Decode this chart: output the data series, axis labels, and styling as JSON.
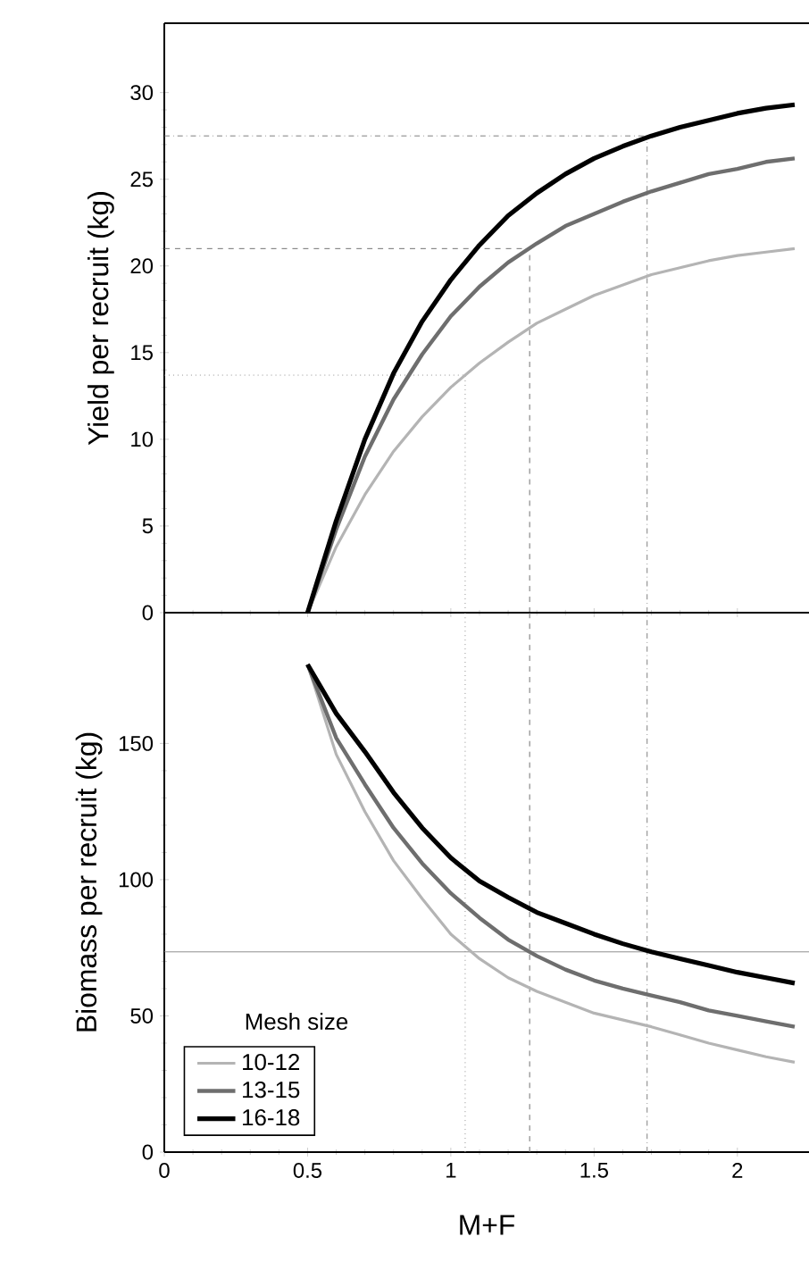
{
  "chart_data": [
    {
      "type": "line",
      "ylabel": "Yield per recruit (kg)",
      "x": [
        0.5,
        0.6,
        0.7,
        0.8,
        0.9,
        1.0,
        1.1,
        1.2,
        1.3,
        1.4,
        1.5,
        1.6,
        1.7,
        1.8,
        1.9,
        2.0,
        2.1,
        2.2
      ],
      "xlim": [
        0,
        2.25
      ],
      "ylim": [
        0,
        34
      ],
      "xticks": [
        0,
        0.5,
        1,
        1.5,
        2
      ],
      "yticks": [
        0,
        5,
        10,
        15,
        20,
        25,
        30
      ],
      "tick_labels": "y",
      "marker": "none",
      "series": [
        {
          "color": "#b4b4b4",
          "values": [
            0,
            3.8,
            6.8,
            9.3,
            11.3,
            13.0,
            14.4,
            15.6,
            16.7,
            17.5,
            18.3,
            18.9,
            19.5,
            19.9,
            20.3,
            20.6,
            20.8,
            21.0
          ]
        },
        {
          "color": "#6e6e6e",
          "values": [
            0,
            4.8,
            9.0,
            12.3,
            14.9,
            17.1,
            18.8,
            20.2,
            21.3,
            22.3,
            23.0,
            23.7,
            24.3,
            24.8,
            25.3,
            25.6,
            26.0,
            26.2
          ]
        },
        {
          "color": "#000000",
          "values": [
            0,
            5.3,
            10.0,
            13.8,
            16.8,
            19.2,
            21.2,
            22.9,
            24.2,
            25.3,
            26.2,
            26.9,
            27.5,
            28.0,
            28.4,
            28.8,
            29.1,
            29.3
          ]
        }
      ],
      "ref_lines": [
        {
          "axis": "x",
          "value": 1.05,
          "line_style": "dotted",
          "color": "#909090"
        },
        {
          "axis": "x",
          "value": 1.275,
          "line_style": "dashed",
          "color": "#707070"
        },
        {
          "axis": "x",
          "value": 1.685,
          "line_style": "dashdotted",
          "color": "#808080"
        },
        {
          "axis": "y",
          "value": 13.7,
          "line_style": "dotted",
          "color": "#909090"
        },
        {
          "axis": "y",
          "value": 21.0,
          "line_style": "dashed",
          "color": "#707070"
        },
        {
          "axis": "y",
          "value": 27.5,
          "line_style": "dashdotted",
          "color": "#808080"
        }
      ]
    },
    {
      "type": "line",
      "xlabel": "M+F",
      "ylabel": "Biomass per recruit (kg)",
      "legend_title": "Mesh size",
      "legend": "bottom left",
      "x": [
        0.5,
        0.6,
        0.7,
        0.8,
        0.9,
        1.0,
        1.1,
        1.2,
        1.3,
        1.4,
        1.5,
        1.6,
        1.7,
        1.8,
        1.9,
        2.0,
        2.1,
        2.2
      ],
      "xlim": [
        0,
        2.25
      ],
      "ylim": [
        0,
        198
      ],
      "xticks": [
        0,
        0.5,
        1,
        1.5,
        2
      ],
      "yticks": [
        0,
        50,
        100,
        150
      ],
      "marker": "none",
      "series": [
        {
          "name": "10-12",
          "color": "#b4b4b4",
          "values": [
            179,
            146,
            125,
            107,
            93,
            80,
            71,
            64,
            59,
            55,
            51,
            48.5,
            46,
            43,
            40,
            37.5,
            35,
            33
          ]
        },
        {
          "name": "13-15",
          "color": "#6e6e6e",
          "values": [
            179,
            152,
            135,
            119,
            106,
            95,
            86,
            78,
            72,
            67,
            63,
            60,
            57.5,
            55,
            52,
            50,
            48,
            46
          ]
        },
        {
          "name": "16-18",
          "color": "#000000",
          "values": [
            179,
            161,
            147,
            132,
            119,
            108,
            99.5,
            93.5,
            88,
            84,
            80,
            76.5,
            73.5,
            71,
            68.5,
            66,
            64,
            62
          ]
        }
      ],
      "ref_lines": [
        {
          "axis": "x",
          "value": 1.05,
          "line_style": "dotted",
          "color": "#909090"
        },
        {
          "axis": "x",
          "value": 1.275,
          "line_style": "dashed",
          "color": "#707070"
        },
        {
          "axis": "x",
          "value": 1.685,
          "line_style": "dashdotted",
          "color": "#808080"
        },
        {
          "axis": "y",
          "value": 73.5,
          "line_style": "solid",
          "color": "#909090"
        }
      ]
    }
  ]
}
